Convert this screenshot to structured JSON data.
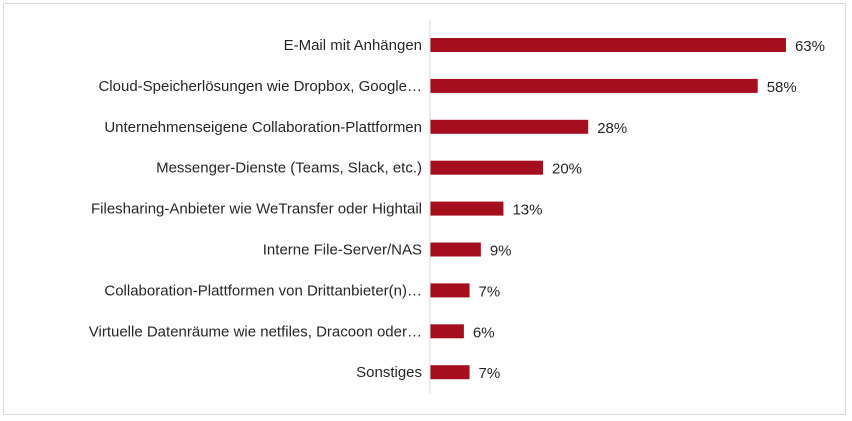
{
  "chart_data": {
    "type": "bar",
    "orientation": "horizontal",
    "categories": [
      "E-Mail mit Anhängen",
      "Cloud-Speicherlösungen wie Dropbox, Google…",
      "Unternehmenseigene Collaboration-Plattformen",
      "Messenger-Dienste (Teams, Slack, etc.)",
      "Filesharing-Anbieter wie WeTransfer oder Hightail",
      "Interne File-Server/NAS",
      "Collaboration-Plattformen von Drittanbieter(n)…",
      "Virtuelle Datenräume wie netfiles, Dracoon oder…",
      "Sonstiges"
    ],
    "values": [
      63,
      58,
      28,
      20,
      13,
      9,
      7,
      6,
      7
    ],
    "data_labels": [
      "63%",
      "58%",
      "28%",
      "20%",
      "13%",
      "9%",
      "7%",
      "6%",
      "7%"
    ],
    "unit": "%",
    "xlim": [
      0,
      70
    ],
    "grid": false,
    "legend": "none",
    "colors": {
      "bar": "#A50E1C",
      "axis": "#d9d9d9"
    }
  }
}
